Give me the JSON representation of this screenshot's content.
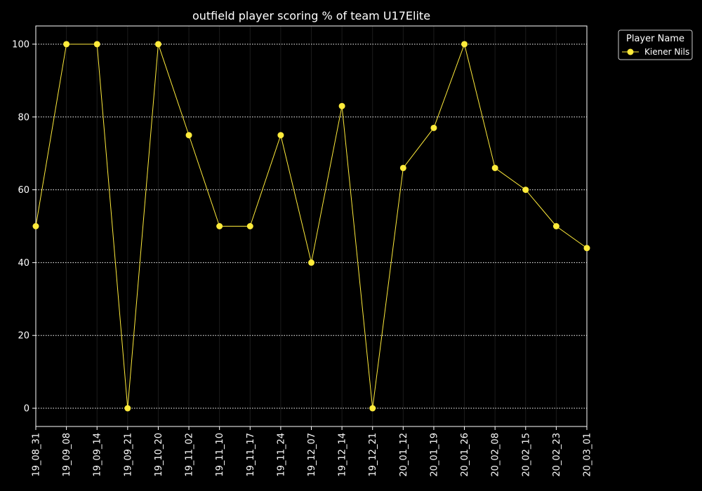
{
  "chart_data": {
    "type": "line",
    "title": "outfield player scoring % of team U17Elite",
    "xlabel": "",
    "ylabel": "",
    "categories": [
      "19_08_31",
      "19_09_08",
      "19_09_14",
      "19_09_21",
      "19_10_20",
      "19_11_02",
      "19_11_10",
      "19_11_17",
      "19_11_24",
      "19_12_07",
      "19_12_14",
      "19_12_21",
      "20_01_12",
      "20_01_19",
      "20_01_26",
      "20_02_08",
      "20_02_15",
      "20_02_23",
      "20_03_01"
    ],
    "series": [
      {
        "name": "Kiener Nils",
        "color": "#ffeb3b",
        "values": [
          50,
          100,
          100,
          0,
          100,
          75,
          50,
          50,
          75,
          40,
          83,
          0,
          66,
          77,
          100,
          66,
          60,
          50,
          44
        ]
      }
    ],
    "yticks": [
      0,
      20,
      40,
      60,
      80,
      100
    ],
    "ylim": [
      -5,
      105
    ],
    "grid": "horizontal-dotted",
    "legend": {
      "title": "Player Name",
      "placement": "outside-top-right"
    },
    "colors": {
      "background": "#000000",
      "axes": "#ffffff",
      "grid": "#ffffff",
      "vgrid": "#1c1c1c"
    }
  }
}
